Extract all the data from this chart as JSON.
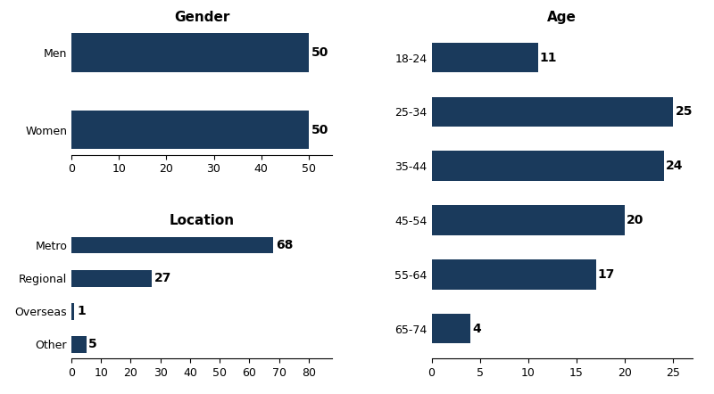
{
  "bar_color": "#1a3a5c",
  "background_color": "#ffffff",
  "gender": {
    "title": "Gender",
    "categories": [
      "Men",
      "Women"
    ],
    "values": [
      50,
      50
    ],
    "xlim": [
      0,
      55
    ],
    "xticks": [
      0,
      10,
      20,
      30,
      40,
      50
    ]
  },
  "location": {
    "title": "Location",
    "categories": [
      "Metro",
      "Regional",
      "Overseas",
      "Other"
    ],
    "values": [
      68,
      27,
      1,
      5
    ],
    "xlim": [
      0,
      88
    ],
    "xticks": [
      0,
      10,
      20,
      30,
      40,
      50,
      60,
      70,
      80
    ]
  },
  "age": {
    "title": "Age",
    "categories": [
      "18-24",
      "25-34",
      "35-44",
      "45-54",
      "55-64",
      "65-74"
    ],
    "values": [
      11,
      25,
      24,
      20,
      17,
      4
    ],
    "xlim": [
      0,
      27
    ],
    "xticks": [
      0,
      5,
      10,
      15,
      20,
      25
    ]
  },
  "title_fontsize": 11,
  "tick_fontsize": 9,
  "value_fontsize": 10
}
